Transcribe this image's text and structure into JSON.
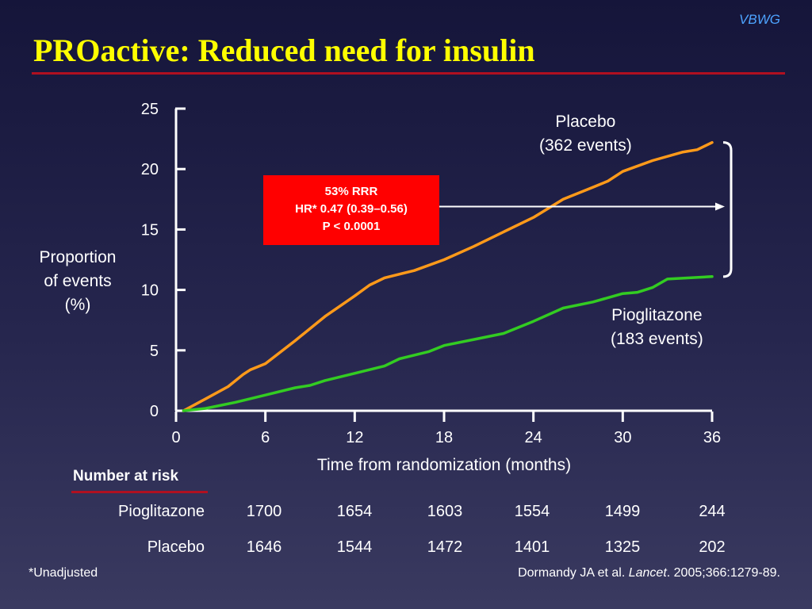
{
  "brand": "VBWG",
  "title": "PROactive: Reduced need for insulin",
  "chart_data": {
    "type": "line",
    "xlabel": "Time from randomization (months)",
    "ylabel": "Proportion of events (%)",
    "xlim": [
      0,
      36
    ],
    "ylim": [
      0,
      25
    ],
    "xticks": [
      0,
      6,
      12,
      18,
      24,
      30,
      36
    ],
    "yticks": [
      0,
      5,
      10,
      15,
      20,
      25
    ],
    "series": [
      {
        "name": "Placebo",
        "events_label": "(362 events)",
        "color": "#ff9a1a",
        "points": [
          [
            0.5,
            0
          ],
          [
            2,
            1
          ],
          [
            3.5,
            2
          ],
          [
            4.5,
            3
          ],
          [
            5,
            3.4
          ],
          [
            6,
            3.9
          ],
          [
            8,
            5.8
          ],
          [
            10,
            7.8
          ],
          [
            12,
            9.5
          ],
          [
            13,
            10.4
          ],
          [
            14,
            11
          ],
          [
            16,
            11.6
          ],
          [
            18,
            12.5
          ],
          [
            20,
            13.6
          ],
          [
            22,
            14.8
          ],
          [
            24,
            16
          ],
          [
            26,
            17.5
          ],
          [
            28,
            18.5
          ],
          [
            29,
            19
          ],
          [
            30,
            19.8
          ],
          [
            32,
            20.7
          ],
          [
            34,
            21.4
          ],
          [
            35,
            21.6
          ],
          [
            36,
            22.2
          ]
        ]
      },
      {
        "name": "Pioglitazone",
        "events_label": "(183 events)",
        "color": "#33cc22",
        "points": [
          [
            0.5,
            0
          ],
          [
            2,
            0.2
          ],
          [
            4,
            0.7
          ],
          [
            6,
            1.3
          ],
          [
            8,
            1.9
          ],
          [
            9,
            2.1
          ],
          [
            10,
            2.5
          ],
          [
            12,
            3.1
          ],
          [
            14,
            3.7
          ],
          [
            15,
            4.3
          ],
          [
            17,
            4.9
          ],
          [
            18,
            5.4
          ],
          [
            20,
            5.9
          ],
          [
            22,
            6.4
          ],
          [
            24,
            7.4
          ],
          [
            26,
            8.5
          ],
          [
            28,
            9
          ],
          [
            30,
            9.7
          ],
          [
            31,
            9.8
          ],
          [
            32,
            10.2
          ],
          [
            33,
            10.9
          ],
          [
            36,
            11.1
          ]
        ]
      }
    ],
    "annotation": {
      "lines": [
        "53% RRR",
        "HR* 0.47 (0.39–0.56)",
        "P < 0.0001"
      ],
      "arrow_y": 16.9,
      "bracket_y_range": [
        11.1,
        22.2
      ]
    }
  },
  "risk_table": {
    "header": "Number at risk",
    "rows": [
      {
        "label": "Pioglitazone",
        "values": [
          "1700",
          "1654",
          "1603",
          "1554",
          "1499",
          "244"
        ]
      },
      {
        "label": "Placebo",
        "values": [
          "1646",
          "1544",
          "1472",
          "1401",
          "1325",
          "202"
        ]
      }
    ]
  },
  "ylabel_lines": [
    "Proportion",
    "of events",
    "(%)"
  ],
  "footnote": "*Unadjusted",
  "citation": {
    "authors": "Dormandy JA et al. ",
    "journal": "Lancet",
    "details": ". 2005;366:1279-89."
  }
}
